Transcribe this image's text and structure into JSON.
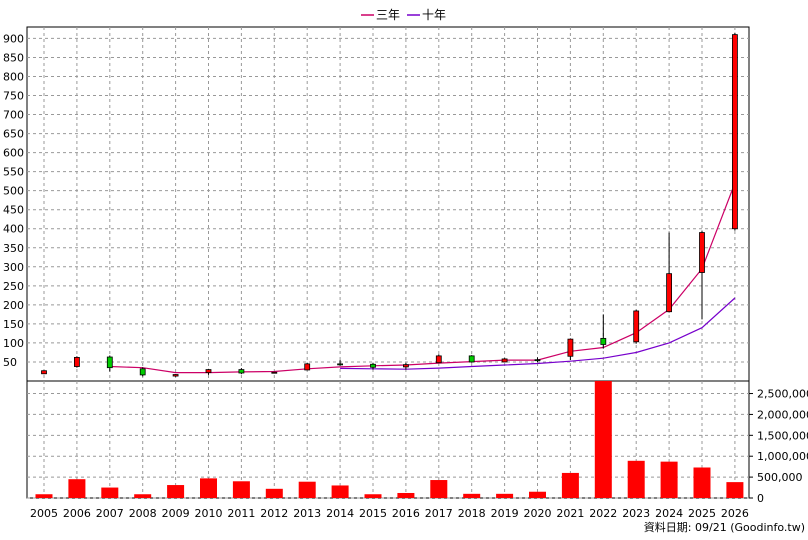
{
  "chart_data": [
    {
      "type": "candlestick",
      "categories": [
        "2005",
        "2006",
        "2007",
        "2008",
        "2009",
        "2010",
        "2011",
        "2012",
        "2013",
        "2014",
        "2015",
        "2016",
        "2017",
        "2018",
        "2019",
        "2020",
        "2021",
        "2022",
        "2023",
        "2024",
        "2025",
        "2026"
      ],
      "candles": [
        {
          "open": 19,
          "high": 28,
          "low": 18,
          "close": 27
        },
        {
          "open": 38,
          "high": 65,
          "low": 35,
          "close": 62
        },
        {
          "open": 63,
          "high": 67,
          "low": 25,
          "close": 35
        },
        {
          "open": 32,
          "high": 36,
          "low": 12,
          "close": 16
        },
        {
          "open": 13,
          "high": 18,
          "low": 11,
          "close": 17
        },
        {
          "open": 22,
          "high": 32,
          "low": 16,
          "close": 30
        },
        {
          "open": 30,
          "high": 34,
          "low": 18,
          "close": 21
        },
        {
          "open": 22,
          "high": 24,
          "low": 20,
          "close": 23
        },
        {
          "open": 29,
          "high": 48,
          "low": 28,
          "close": 45
        },
        {
          "open": 45,
          "high": 55,
          "low": 40,
          "close": 44
        },
        {
          "open": 44,
          "high": 48,
          "low": 30,
          "close": 36
        },
        {
          "open": 37,
          "high": 48,
          "low": 30,
          "close": 43
        },
        {
          "open": 48,
          "high": 70,
          "low": 47,
          "close": 66
        },
        {
          "open": 66,
          "high": 68,
          "low": 48,
          "close": 50
        },
        {
          "open": 50,
          "high": 60,
          "low": 49,
          "close": 58
        },
        {
          "open": 56,
          "high": 62,
          "low": 49,
          "close": 55
        },
        {
          "open": 65,
          "high": 112,
          "low": 55,
          "close": 110
        },
        {
          "open": 112,
          "high": 175,
          "low": 85,
          "close": 96
        },
        {
          "open": 103,
          "high": 187,
          "low": 98,
          "close": 184
        },
        {
          "open": 182,
          "high": 390,
          "low": 180,
          "close": 282
        },
        {
          "open": 285,
          "high": 395,
          "low": 162,
          "close": 390
        },
        {
          "open": 400,
          "high": 915,
          "low": 395,
          "close": 910
        }
      ],
      "ma_series": [
        {
          "name": "三年",
          "color": "#cc0066",
          "values": [
            null,
            null,
            38,
            35,
            22,
            22,
            24,
            25,
            32,
            37,
            40,
            42,
            47,
            51,
            55,
            55,
            78,
            88,
            127,
            188,
            295,
            520
          ]
        },
        {
          "name": "十年",
          "color": "#7700cc",
          "values": [
            null,
            null,
            null,
            null,
            null,
            null,
            null,
            null,
            null,
            33,
            32,
            31,
            34,
            38,
            42,
            46,
            52,
            60,
            75,
            100,
            140,
            218
          ]
        }
      ],
      "ylim": [
        0,
        930
      ],
      "yticks": [
        50,
        100,
        150,
        200,
        250,
        300,
        350,
        400,
        450,
        500,
        550,
        600,
        650,
        700,
        750,
        800,
        850,
        900
      ],
      "up_color": "#ff0000",
      "down_color": "#00cc00",
      "grid": true,
      "legend": "top-center"
    },
    {
      "type": "bar",
      "categories": [
        "2005",
        "2006",
        "2007",
        "2008",
        "2009",
        "2010",
        "2011",
        "2012",
        "2013",
        "2014",
        "2015",
        "2016",
        "2017",
        "2018",
        "2019",
        "2020",
        "2021",
        "2022",
        "2023",
        "2024",
        "2025",
        "2026"
      ],
      "values": [
        90000,
        450000,
        250000,
        90000,
        310000,
        470000,
        400000,
        220000,
        390000,
        300000,
        90000,
        120000,
        430000,
        100000,
        100000,
        150000,
        600000,
        2850000,
        890000,
        870000,
        730000,
        380000
      ],
      "ylim": [
        0,
        2800000
      ],
      "yticks": [
        0,
        500000,
        1000000,
        1500000,
        2000000,
        2500000
      ],
      "ytick_labels": [
        "0",
        "500,000",
        "1,000,000",
        "1,500,000",
        "2,000,000",
        "2,500,000"
      ],
      "bar_color": "#ff0000",
      "grid": true
    }
  ],
  "legend": [
    {
      "label": "三年",
      "color": "#cc0066"
    },
    {
      "label": "十年",
      "color": "#7700cc"
    }
  ],
  "footer": "資料日期: 09/21  (Goodinfo.tw)"
}
